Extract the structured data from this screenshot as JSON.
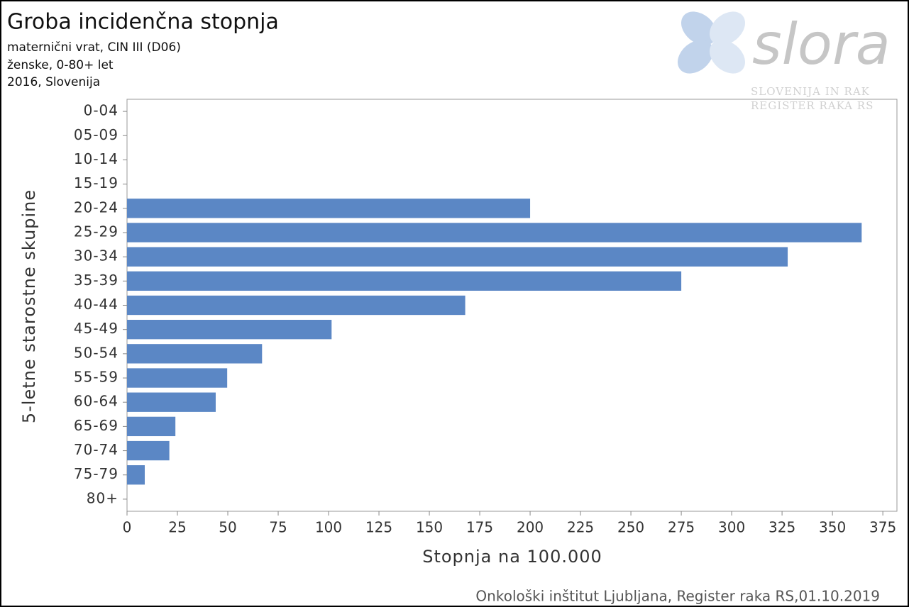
{
  "chart_data": {
    "type": "hbar",
    "title": "Groba incidenčna stopnja",
    "subtitle_lines": [
      "maternični vrat, CIN III  (D06)",
      "ženske, 0-80+ let",
      "2016, Slovenija"
    ],
    "logo": {
      "name": "slora",
      "line1": "SLOVENIJA IN RAK",
      "line2": "REGISTER RAKA RS"
    },
    "x_label": "Stopnja na 100.000",
    "y_label": "5-letne starostne skupine",
    "source": "Onkološki inštitut Ljubljana, Register raka RS,01.10.2019",
    "categories": [
      "0-04",
      "05-09",
      "10-14",
      "15-19",
      "20-24",
      "25-29",
      "30-34",
      "35-39",
      "40-44",
      "45-49",
      "50-54",
      "55-59",
      "60-64",
      "65-69",
      "70-74",
      "75-79",
      "80+"
    ],
    "values": [
      0,
      0,
      0,
      0,
      200,
      364.5,
      327.8,
      275,
      167.8,
      101.5,
      67,
      49.7,
      44,
      24,
      21,
      8.8,
      0
    ],
    "color": "#5b87c5",
    "xlim": [
      0,
      382
    ],
    "xticks": [
      0,
      25,
      50,
      75,
      100,
      125,
      150,
      175,
      200,
      225,
      250,
      275,
      300,
      325,
      350,
      375
    ],
    "grid": false
  }
}
